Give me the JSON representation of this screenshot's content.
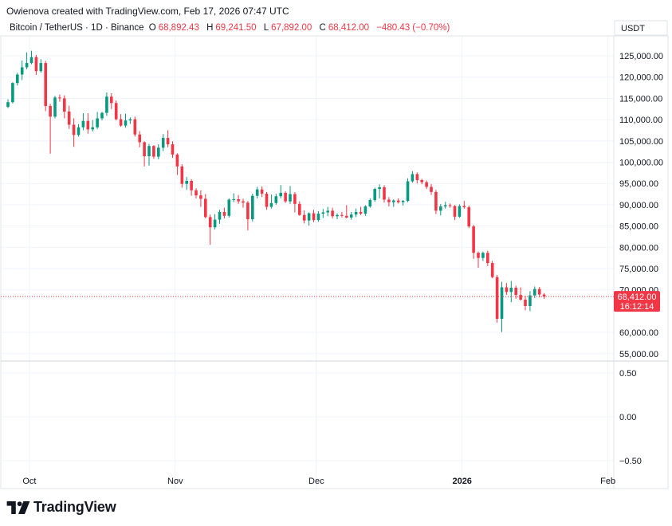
{
  "header": {
    "attribution": "Owienova created with TradingView.com, Feb 17, 2026 07:47 UTC"
  },
  "symbol": {
    "name": "Bitcoin / TetherUS · 1D · Binance",
    "open_label": "O",
    "open": "68,892.43",
    "high_label": "H",
    "high": "69,241.50",
    "low_label": "L",
    "low": "67,892.00",
    "close_label": "C",
    "close": "68,412.00",
    "change": "−480.43 (−0.70%)"
  },
  "currency": "USDT",
  "last_price": {
    "value": "68,412.00",
    "countdown": "16:12:14"
  },
  "colors": {
    "up": "#089981",
    "down": "#f23645",
    "grid": "#f0f3fa",
    "axis_text": "#131722"
  },
  "brand": "TradingView",
  "chart_data": [
    {
      "type": "candlestick",
      "x_axis_labels": [
        "Oct",
        "Nov",
        "Dec",
        "2026",
        "Feb"
      ],
      "y_ticks": [
        "125,000.00",
        "120,000.00",
        "115,000.00",
        "110,000.00",
        "105,000.00",
        "100,000.00",
        "95,000.00",
        "90,000.00",
        "85,000.00",
        "80,000.00",
        "75,000.00",
        "70,000.00",
        "60,000.00",
        "55,000.00"
      ],
      "ylim": [
        53000,
        130000
      ],
      "grid": true,
      "start_date": "2025-09-30",
      "series": [
        {
          "o": 113000,
          "h": 114800,
          "l": 112700,
          "c": 114100
        },
        {
          "o": 114100,
          "h": 118800,
          "l": 113800,
          "c": 118600
        },
        {
          "o": 118600,
          "h": 121000,
          "l": 118000,
          "c": 120600
        },
        {
          "o": 120600,
          "h": 123900,
          "l": 119300,
          "c": 122300
        },
        {
          "o": 122300,
          "h": 125800,
          "l": 121800,
          "c": 123300
        },
        {
          "o": 123300,
          "h": 126200,
          "l": 123000,
          "c": 124700
        },
        {
          "o": 124700,
          "h": 125200,
          "l": 120500,
          "c": 121400
        },
        {
          "o": 121400,
          "h": 124200,
          "l": 121000,
          "c": 123300
        },
        {
          "o": 123300,
          "h": 123800,
          "l": 112000,
          "c": 113200
        },
        {
          "o": 113200,
          "h": 113700,
          "l": 102000,
          "c": 110700
        },
        {
          "o": 110700,
          "h": 115600,
          "l": 110300,
          "c": 115200
        },
        {
          "o": 115200,
          "h": 115900,
          "l": 114200,
          "c": 115000
        },
        {
          "o": 115000,
          "h": 115700,
          "l": 110300,
          "c": 111900
        },
        {
          "o": 111900,
          "h": 113300,
          "l": 107800,
          "c": 108800
        },
        {
          "o": 108800,
          "h": 110300,
          "l": 103600,
          "c": 106400
        },
        {
          "o": 106400,
          "h": 108900,
          "l": 106000,
          "c": 108200
        },
        {
          "o": 108200,
          "h": 111500,
          "l": 107500,
          "c": 109700
        },
        {
          "o": 109700,
          "h": 111500,
          "l": 106700,
          "c": 107700
        },
        {
          "o": 107700,
          "h": 109900,
          "l": 107200,
          "c": 108200
        },
        {
          "o": 108200,
          "h": 111800,
          "l": 107800,
          "c": 110300
        },
        {
          "o": 110300,
          "h": 111800,
          "l": 109800,
          "c": 111600
        },
        {
          "o": 111600,
          "h": 116400,
          "l": 110900,
          "c": 115400
        },
        {
          "o": 115400,
          "h": 116200,
          "l": 112500,
          "c": 113900
        },
        {
          "o": 113900,
          "h": 114500,
          "l": 109800,
          "c": 110100
        },
        {
          "o": 110100,
          "h": 111300,
          "l": 108300,
          "c": 108600
        },
        {
          "o": 108600,
          "h": 111400,
          "l": 108100,
          "c": 109800
        },
        {
          "o": 109800,
          "h": 110500,
          "l": 109000,
          "c": 110100
        },
        {
          "o": 110100,
          "h": 110700,
          "l": 106000,
          "c": 106500
        },
        {
          "o": 106500,
          "h": 107300,
          "l": 103500,
          "c": 104700
        },
        {
          "o": 104700,
          "h": 104900,
          "l": 99000,
          "c": 101400
        },
        {
          "o": 101400,
          "h": 104300,
          "l": 99200,
          "c": 103800
        },
        {
          "o": 103800,
          "h": 104000,
          "l": 100800,
          "c": 101300
        },
        {
          "o": 101300,
          "h": 104200,
          "l": 100700,
          "c": 103400
        },
        {
          "o": 103400,
          "h": 106600,
          "l": 102600,
          "c": 105700
        },
        {
          "o": 105700,
          "h": 107500,
          "l": 103500,
          "c": 104200
        },
        {
          "o": 104200,
          "h": 104900,
          "l": 101000,
          "c": 101800
        },
        {
          "o": 101800,
          "h": 102100,
          "l": 97000,
          "c": 99000
        },
        {
          "o": 99000,
          "h": 99500,
          "l": 94000,
          "c": 94900
        },
        {
          "o": 94900,
          "h": 96500,
          "l": 93500,
          "c": 95600
        },
        {
          "o": 95600,
          "h": 96000,
          "l": 92100,
          "c": 93400
        },
        {
          "o": 93400,
          "h": 93900,
          "l": 91500,
          "c": 92200
        },
        {
          "o": 92200,
          "h": 93400,
          "l": 89500,
          "c": 91400
        },
        {
          "o": 91400,
          "h": 92500,
          "l": 86800,
          "c": 87100
        },
        {
          "o": 87100,
          "h": 87700,
          "l": 80600,
          "c": 84700
        },
        {
          "o": 84700,
          "h": 87800,
          "l": 84200,
          "c": 86500
        },
        {
          "o": 86500,
          "h": 88800,
          "l": 85500,
          "c": 88300
        },
        {
          "o": 88300,
          "h": 89300,
          "l": 86800,
          "c": 87400
        },
        {
          "o": 87400,
          "h": 91500,
          "l": 87000,
          "c": 91200
        },
        {
          "o": 91200,
          "h": 92700,
          "l": 90600,
          "c": 91300
        },
        {
          "o": 91300,
          "h": 92300,
          "l": 90200,
          "c": 90800
        },
        {
          "o": 90800,
          "h": 91400,
          "l": 89300,
          "c": 90500
        },
        {
          "o": 90500,
          "h": 90900,
          "l": 84000,
          "c": 86600
        },
        {
          "o": 86600,
          "h": 92600,
          "l": 86100,
          "c": 92100
        },
        {
          "o": 92100,
          "h": 94200,
          "l": 91500,
          "c": 93600
        },
        {
          "o": 93600,
          "h": 94300,
          "l": 91800,
          "c": 92600
        },
        {
          "o": 92600,
          "h": 93000,
          "l": 88800,
          "c": 89500
        },
        {
          "o": 89500,
          "h": 92400,
          "l": 89100,
          "c": 90400
        },
        {
          "o": 90400,
          "h": 92600,
          "l": 90000,
          "c": 92000
        },
        {
          "o": 92000,
          "h": 94600,
          "l": 91500,
          "c": 92800
        },
        {
          "o": 92800,
          "h": 93200,
          "l": 90400,
          "c": 90800
        },
        {
          "o": 90800,
          "h": 94400,
          "l": 90200,
          "c": 92500
        },
        {
          "o": 92500,
          "h": 93000,
          "l": 88200,
          "c": 90200
        },
        {
          "o": 90200,
          "h": 90800,
          "l": 87400,
          "c": 87600
        },
        {
          "o": 87600,
          "h": 88700,
          "l": 85600,
          "c": 86300
        },
        {
          "o": 86300,
          "h": 88200,
          "l": 85100,
          "c": 88000
        },
        {
          "o": 88000,
          "h": 88800,
          "l": 85900,
          "c": 86400
        },
        {
          "o": 86400,
          "h": 88500,
          "l": 86000,
          "c": 87900
        },
        {
          "o": 87900,
          "h": 89000,
          "l": 86900,
          "c": 88200
        },
        {
          "o": 88200,
          "h": 89500,
          "l": 87300,
          "c": 88600
        },
        {
          "o": 88600,
          "h": 89300,
          "l": 86800,
          "c": 87300
        },
        {
          "o": 87300,
          "h": 88000,
          "l": 86600,
          "c": 87600
        },
        {
          "o": 87600,
          "h": 88300,
          "l": 87000,
          "c": 87400
        },
        {
          "o": 87400,
          "h": 89900,
          "l": 86800,
          "c": 87000
        },
        {
          "o": 87000,
          "h": 88300,
          "l": 86500,
          "c": 87700
        },
        {
          "o": 87700,
          "h": 89100,
          "l": 87100,
          "c": 88300
        },
        {
          "o": 88300,
          "h": 89500,
          "l": 87600,
          "c": 87900
        },
        {
          "o": 87900,
          "h": 89900,
          "l": 87400,
          "c": 89600
        },
        {
          "o": 89600,
          "h": 91500,
          "l": 89300,
          "c": 91100
        },
        {
          "o": 91100,
          "h": 94000,
          "l": 90700,
          "c": 93700
        },
        {
          "o": 93700,
          "h": 94800,
          "l": 91500,
          "c": 94100
        },
        {
          "o": 94100,
          "h": 94600,
          "l": 90500,
          "c": 91200
        },
        {
          "o": 91200,
          "h": 91800,
          "l": 89600,
          "c": 90600
        },
        {
          "o": 90600,
          "h": 91300,
          "l": 89500,
          "c": 91000
        },
        {
          "o": 91000,
          "h": 91500,
          "l": 90300,
          "c": 90600
        },
        {
          "o": 90600,
          "h": 91100,
          "l": 89800,
          "c": 90900
        },
        {
          "o": 90900,
          "h": 96200,
          "l": 90600,
          "c": 95500
        },
        {
          "o": 95500,
          "h": 97900,
          "l": 95200,
          "c": 97200
        },
        {
          "o": 97200,
          "h": 97600,
          "l": 95000,
          "c": 95800
        },
        {
          "o": 95800,
          "h": 96100,
          "l": 94800,
          "c": 95300
        },
        {
          "o": 95300,
          "h": 95700,
          "l": 93700,
          "c": 94200
        },
        {
          "o": 94200,
          "h": 94900,
          "l": 92300,
          "c": 93000
        },
        {
          "o": 93000,
          "h": 93500,
          "l": 87800,
          "c": 88600
        },
        {
          "o": 88600,
          "h": 90200,
          "l": 87500,
          "c": 89600
        },
        {
          "o": 89600,
          "h": 90700,
          "l": 89100,
          "c": 89900
        },
        {
          "o": 89900,
          "h": 90300,
          "l": 89300,
          "c": 89700
        },
        {
          "o": 89700,
          "h": 89900,
          "l": 86400,
          "c": 87200
        },
        {
          "o": 87200,
          "h": 90100,
          "l": 86900,
          "c": 89700
        },
        {
          "o": 89700,
          "h": 90900,
          "l": 89100,
          "c": 89400
        },
        {
          "o": 89400,
          "h": 89800,
          "l": 84500,
          "c": 84900
        },
        {
          "o": 84900,
          "h": 85300,
          "l": 77300,
          "c": 78700
        },
        {
          "o": 78700,
          "h": 79000,
          "l": 75200,
          "c": 77500
        },
        {
          "o": 77500,
          "h": 79000,
          "l": 76800,
          "c": 78700
        },
        {
          "o": 78700,
          "h": 79200,
          "l": 75600,
          "c": 76300
        },
        {
          "o": 76300,
          "h": 76800,
          "l": 72700,
          "c": 73000
        },
        {
          "o": 73000,
          "h": 73500,
          "l": 62300,
          "c": 63200
        },
        {
          "o": 63200,
          "h": 71900,
          "l": 60100,
          "c": 70600
        },
        {
          "o": 70600,
          "h": 71600,
          "l": 68800,
          "c": 69500
        },
        {
          "o": 69500,
          "h": 72100,
          "l": 67100,
          "c": 70500
        },
        {
          "o": 70500,
          "h": 71000,
          "l": 67900,
          "c": 68800
        },
        {
          "o": 68800,
          "h": 70600,
          "l": 67500,
          "c": 67700
        },
        {
          "o": 67700,
          "h": 68600,
          "l": 65200,
          "c": 66200
        },
        {
          "o": 66200,
          "h": 69700,
          "l": 65000,
          "c": 68700
        },
        {
          "o": 68700,
          "h": 70800,
          "l": 68100,
          "c": 70200
        },
        {
          "o": 70200,
          "h": 70700,
          "l": 68200,
          "c": 68900
        },
        {
          "o": 68900,
          "h": 69241.5,
          "l": 67892,
          "c": 68412
        }
      ]
    },
    {
      "type": "line",
      "y_ticks": [
        "0.50",
        "0.00",
        "−0.50"
      ],
      "series": []
    }
  ]
}
